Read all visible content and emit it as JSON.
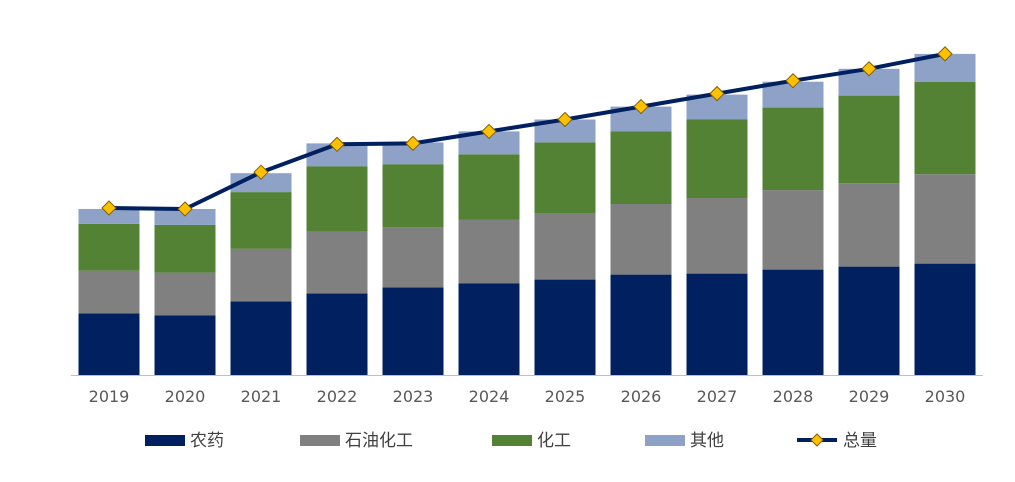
{
  "chart_data": {
    "type": "bar",
    "stacked": true,
    "categories": [
      "2019",
      "2020",
      "2021",
      "2022",
      "2023",
      "2024",
      "2025",
      "2026",
      "2027",
      "2028",
      "2029",
      "2030"
    ],
    "series": [
      {
        "name": "农药",
        "color": "#002060",
        "values": [
          62,
          60,
          74,
          82,
          88,
          92,
          96,
          101,
          102,
          106,
          109,
          112
        ]
      },
      {
        "name": "石油化工",
        "color": "#808080",
        "values": [
          43,
          43,
          53,
          62,
          60,
          64,
          67,
          71,
          76,
          80,
          84,
          90
        ]
      },
      {
        "name": "化工",
        "color": "#548235",
        "values": [
          47,
          48,
          57,
          66,
          64,
          66,
          71,
          73,
          79,
          83,
          88,
          93
        ]
      },
      {
        "name": "其他",
        "color": "#8EA1C6",
        "values": [
          15,
          16,
          19,
          23,
          22,
          23,
          23,
          25,
          25,
          26,
          27,
          28
        ]
      }
    ],
    "line": {
      "name": "总量",
      "color": "#002060",
      "marker_color": "#FFC000",
      "values": [
        168,
        167,
        204,
        232,
        233,
        245,
        257,
        270,
        283,
        296,
        308,
        323
      ]
    },
    "ylim": [
      0,
      345
    ],
    "legend": "bottom",
    "grid": false
  }
}
